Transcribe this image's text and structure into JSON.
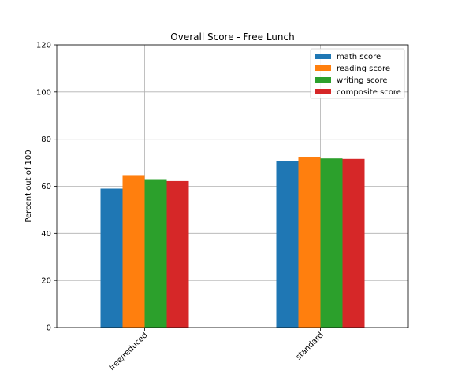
{
  "chart_data": {
    "type": "bar",
    "title": "Overall Score - Free Lunch",
    "xlabel": "",
    "ylabel": "Percent out of 100",
    "categories": [
      "free/reduced",
      "standard"
    ],
    "series": [
      {
        "name": "math score",
        "color": "#1f77b4",
        "values": [
          59.0,
          70.6
        ]
      },
      {
        "name": "reading score",
        "color": "#ff7f0e",
        "values": [
          64.7,
          72.4
        ]
      },
      {
        "name": "writing score",
        "color": "#2ca02c",
        "values": [
          63.0,
          71.8
        ]
      },
      {
        "name": "composite score",
        "color": "#d62728",
        "values": [
          62.2,
          71.6
        ]
      }
    ],
    "ylim": [
      0,
      120
    ],
    "yticks": [
      0,
      20,
      40,
      60,
      80,
      100,
      120
    ],
    "grid": true,
    "legend": "top-right"
  }
}
